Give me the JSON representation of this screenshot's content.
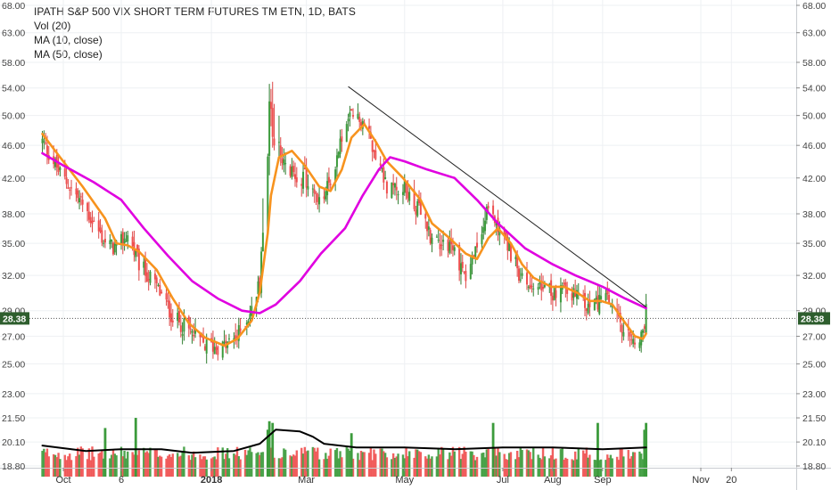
{
  "chart_data": {
    "type": "candlestick",
    "title": "IPATH S&P 500 VIX SHORT TERM FUTURES TM ETN, 1D, BATS",
    "legend": [
      "Vol (20)",
      "MA (10, close)",
      "MA (50, close)"
    ],
    "price_axis": {
      "ylim": [
        17.7,
        68.0
      ],
      "scale": "log",
      "ticks": [
        68.0,
        63.0,
        58.0,
        54.0,
        50.0,
        46.0,
        42.0,
        38.0,
        35.0,
        32.0,
        29.0,
        27.0,
        25.0,
        23.0,
        21.5,
        20.1,
        18.8
      ],
      "tick_labels": [
        "68.00",
        "63.00",
        "58.00",
        "54.00",
        "50.00",
        "46.00",
        "42.00",
        "38.00",
        "35.00",
        "32.00",
        "29.00",
        "27.00",
        "25.00",
        "23.00",
        "21.50",
        "20.10",
        "18.80"
      ]
    },
    "x_axis": {
      "start": "2017-09-18",
      "end": "2018-10-20",
      "tick_dates": [
        "2017-10-01",
        "2017-11-06",
        "2018-01-01",
        "2018-03-01",
        "2018-05-01",
        "2018-07-01",
        "2018-08-01",
        "2018-09-01",
        "2018-11-01",
        "2018-11-20"
      ],
      "tick_labels": [
        "Oct",
        "6",
        "2018",
        "Mar",
        "May",
        "Jul",
        "Aug",
        "Sep",
        "Nov",
        "20"
      ]
    },
    "last_price": 28.38,
    "last_price_label": "28.38",
    "close_path": [
      [
        "2017-09-18",
        46.5
      ],
      [
        "2017-09-29",
        42.5
      ],
      [
        "2017-10-13",
        39.0
      ],
      [
        "2017-10-27",
        35.0
      ],
      [
        "2017-11-03",
        34.5
      ],
      [
        "2017-11-10",
        35.8
      ],
      [
        "2017-11-17",
        33.0
      ],
      [
        "2017-11-28",
        31.0
      ],
      [
        "2017-12-08",
        28.5
      ],
      [
        "2017-12-18",
        27.4
      ],
      [
        "2017-12-28",
        26.3
      ],
      [
        "2018-01-09",
        26.2
      ],
      [
        "2018-01-17",
        27.0
      ],
      [
        "2018-01-26",
        29.0
      ],
      [
        "2018-01-31",
        31.5
      ],
      [
        "2018-02-05",
        46.0
      ],
      [
        "2018-02-07",
        50.0
      ],
      [
        "2018-02-12",
        44.0
      ],
      [
        "2018-02-20",
        42.5
      ],
      [
        "2018-02-28",
        42.0
      ],
      [
        "2018-03-09",
        39.0
      ],
      [
        "2018-03-16",
        41.5
      ],
      [
        "2018-03-23",
        47.0
      ],
      [
        "2018-03-29",
        50.0
      ],
      [
        "2018-04-06",
        49.0
      ],
      [
        "2018-04-13",
        45.0
      ],
      [
        "2018-04-20",
        41.0
      ],
      [
        "2018-04-30",
        41.0
      ],
      [
        "2018-05-11",
        38.0
      ],
      [
        "2018-05-18",
        35.5
      ],
      [
        "2018-05-29",
        35.0
      ],
      [
        "2018-06-08",
        32.0
      ],
      [
        "2018-06-15",
        34.5
      ],
      [
        "2018-06-22",
        38.5
      ],
      [
        "2018-06-28",
        37.0
      ],
      [
        "2018-07-06",
        34.0
      ],
      [
        "2018-07-13",
        31.5
      ],
      [
        "2018-07-20",
        31.0
      ],
      [
        "2018-07-31",
        30.5
      ],
      [
        "2018-08-08",
        31.0
      ],
      [
        "2018-08-16",
        30.0
      ],
      [
        "2018-08-24",
        29.2
      ],
      [
        "2018-08-31",
        30.0
      ],
      [
        "2018-09-07",
        29.5
      ],
      [
        "2018-09-14",
        27.0
      ],
      [
        "2018-09-21",
        26.5
      ],
      [
        "2018-09-26",
        26.8
      ],
      [
        "2018-09-28",
        29.2
      ]
    ],
    "ma_paths": [
      {
        "name": "MA (10, close)",
        "color": "#f7931e",
        "points": [
          [
            "2017-09-18",
            47.5
          ],
          [
            "2017-09-29",
            44.5
          ],
          [
            "2017-10-13",
            41.0
          ],
          [
            "2017-10-27",
            37.5
          ],
          [
            "2017-11-03",
            35.0
          ],
          [
            "2017-11-10",
            34.8
          ],
          [
            "2017-11-17",
            34.2
          ],
          [
            "2017-11-28",
            32.5
          ],
          [
            "2017-12-08",
            30.0
          ],
          [
            "2017-12-18",
            28.0
          ],
          [
            "2017-12-28",
            26.9
          ],
          [
            "2018-01-09",
            26.3
          ],
          [
            "2018-01-17",
            26.8
          ],
          [
            "2018-01-26",
            28.2
          ],
          [
            "2018-01-31",
            30.5
          ],
          [
            "2018-02-05",
            36.0
          ],
          [
            "2018-02-07",
            40.0
          ],
          [
            "2018-02-12",
            44.5
          ],
          [
            "2018-02-20",
            45.3
          ],
          [
            "2018-02-28",
            43.5
          ],
          [
            "2018-03-09",
            41.0
          ],
          [
            "2018-03-16",
            40.5
          ],
          [
            "2018-03-23",
            43.0
          ],
          [
            "2018-03-29",
            47.0
          ],
          [
            "2018-04-06",
            48.8
          ],
          [
            "2018-04-13",
            46.5
          ],
          [
            "2018-04-20",
            44.0
          ],
          [
            "2018-04-30",
            42.0
          ],
          [
            "2018-05-11",
            39.5
          ],
          [
            "2018-05-18",
            37.0
          ],
          [
            "2018-05-29",
            35.5
          ],
          [
            "2018-06-08",
            34.0
          ],
          [
            "2018-06-15",
            33.5
          ],
          [
            "2018-06-22",
            35.5
          ],
          [
            "2018-06-28",
            36.5
          ],
          [
            "2018-07-06",
            35.0
          ],
          [
            "2018-07-13",
            33.0
          ],
          [
            "2018-07-20",
            31.8
          ],
          [
            "2018-07-31",
            31.0
          ],
          [
            "2018-08-08",
            31.0
          ],
          [
            "2018-08-16",
            30.5
          ],
          [
            "2018-08-24",
            29.8
          ],
          [
            "2018-08-31",
            29.8
          ],
          [
            "2018-09-07",
            29.5
          ],
          [
            "2018-09-14",
            28.2
          ],
          [
            "2018-09-21",
            27.0
          ],
          [
            "2018-09-26",
            26.8
          ],
          [
            "2018-09-28",
            27.2
          ]
        ]
      },
      {
        "name": "MA (50, close)",
        "color": "#e000e0",
        "points": [
          [
            "2017-09-18",
            45.0
          ],
          [
            "2017-10-01",
            43.5
          ],
          [
            "2017-10-20",
            41.5
          ],
          [
            "2017-11-06",
            39.5
          ],
          [
            "2017-11-20",
            36.5
          ],
          [
            "2017-12-05",
            33.8
          ],
          [
            "2017-12-20",
            31.5
          ],
          [
            "2018-01-05",
            30.0
          ],
          [
            "2018-01-20",
            29.0
          ],
          [
            "2018-01-31",
            28.8
          ],
          [
            "2018-02-10",
            29.5
          ],
          [
            "2018-02-25",
            31.5
          ],
          [
            "2018-03-10",
            34.0
          ],
          [
            "2018-03-25",
            36.5
          ],
          [
            "2018-04-05",
            40.0
          ],
          [
            "2018-04-15",
            43.0
          ],
          [
            "2018-04-22",
            44.5
          ],
          [
            "2018-05-01",
            44.0
          ],
          [
            "2018-05-15",
            43.0
          ],
          [
            "2018-06-01",
            42.0
          ],
          [
            "2018-06-15",
            39.5
          ],
          [
            "2018-06-28",
            37.0
          ],
          [
            "2018-07-15",
            34.5
          ],
          [
            "2018-08-01",
            33.0
          ],
          [
            "2018-08-15",
            32.0
          ],
          [
            "2018-09-01",
            31.0
          ],
          [
            "2018-09-15",
            30.0
          ],
          [
            "2018-09-28",
            29.2
          ]
        ]
      }
    ],
    "trendline": {
      "from": [
        "2018-03-27",
        54.2
      ],
      "to": [
        "2018-09-28",
        29.3
      ]
    },
    "volume": {
      "level_range": [
        18.8,
        21.4
      ],
      "ma_label": "Vol (20)",
      "ma_points": [
        [
          "2017-09-18",
          19.9
        ],
        [
          "2017-10-15",
          19.6
        ],
        [
          "2017-11-06",
          19.7
        ],
        [
          "2017-12-01",
          19.7
        ],
        [
          "2017-12-20",
          19.5
        ],
        [
          "2018-01-15",
          19.6
        ],
        [
          "2018-01-31",
          20.0
        ],
        [
          "2018-02-10",
          20.8
        ],
        [
          "2018-02-25",
          20.7
        ],
        [
          "2018-03-05",
          20.4
        ],
        [
          "2018-03-12",
          20.0
        ],
        [
          "2018-04-01",
          19.8
        ],
        [
          "2018-05-01",
          19.8
        ],
        [
          "2018-06-01",
          19.7
        ],
        [
          "2018-07-01",
          19.8
        ],
        [
          "2018-08-01",
          19.8
        ],
        [
          "2018-09-01",
          19.7
        ],
        [
          "2018-09-28",
          19.8
        ]
      ],
      "spikes": [
        [
          "2018-02-06",
          21.3
        ],
        [
          "2018-02-05",
          20.8
        ],
        [
          "2018-02-08",
          21.2
        ],
        [
          "2017-11-15",
          21.5
        ],
        [
          "2017-10-27",
          20.9
        ],
        [
          "2018-06-25",
          21.2
        ],
        [
          "2018-08-29",
          21.2
        ],
        [
          "2018-09-28",
          21.2
        ],
        [
          "2018-09-27",
          20.8
        ],
        [
          "2018-03-29",
          20.6
        ]
      ]
    },
    "colors": {
      "up": "#3c9b3c",
      "down": "#f05050",
      "up_wick": "#2f7d2f",
      "down_wick": "#d44",
      "trendline": "#222222",
      "vol_ma": "#000000",
      "grid": "#eef0f3",
      "last_price_line": "#555555",
      "last_price_bg": "#2e5e2e"
    }
  }
}
